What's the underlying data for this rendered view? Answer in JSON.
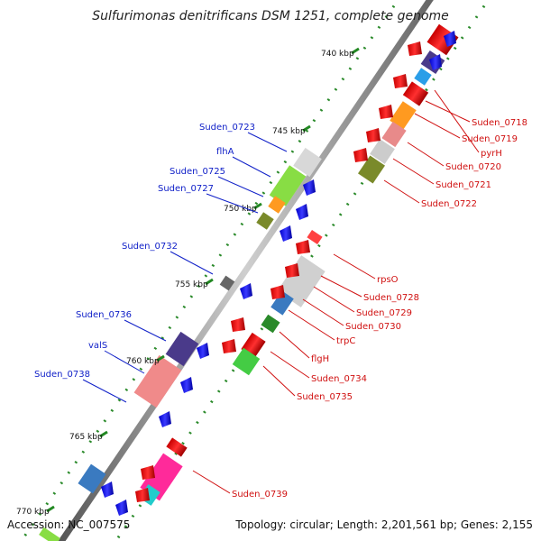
{
  "title": "Sulfurimonas denitrificans DSM 1251, complete genome",
  "footer": {
    "accession": "Accession: NC_007575",
    "summary": "Topology: circular; Length: 2,201,561 bp; Genes: 2,155"
  },
  "kbp_ticks": [
    "740 kbp",
    "745 kbp",
    "750 kbp",
    "755 kbp",
    "760 kbp",
    "765 kbp",
    "770 kbp"
  ],
  "labels_left": [
    "Suden_0723",
    "flhA",
    "Suden_0725",
    "Suden_0727",
    "Suden_0732",
    "Suden_0736",
    "valS",
    "Suden_0738"
  ],
  "labels_right": [
    "pyrH",
    "Suden_0718",
    "Suden_0719",
    "Suden_0720",
    "Suden_0721",
    "Suden_0722",
    "rpsO",
    "Suden_0728",
    "Suden_0729",
    "Suden_0730",
    "trpC",
    "flgH",
    "Suden_0734",
    "Suden_0735",
    "Suden_0739"
  ],
  "colors": {
    "backbone": "#888888",
    "forward_gene": "#0a0aff",
    "reverse_gene": "#ff1010",
    "left_label": "#1020c8",
    "right_label": "#d01010",
    "tick": "#228822"
  }
}
